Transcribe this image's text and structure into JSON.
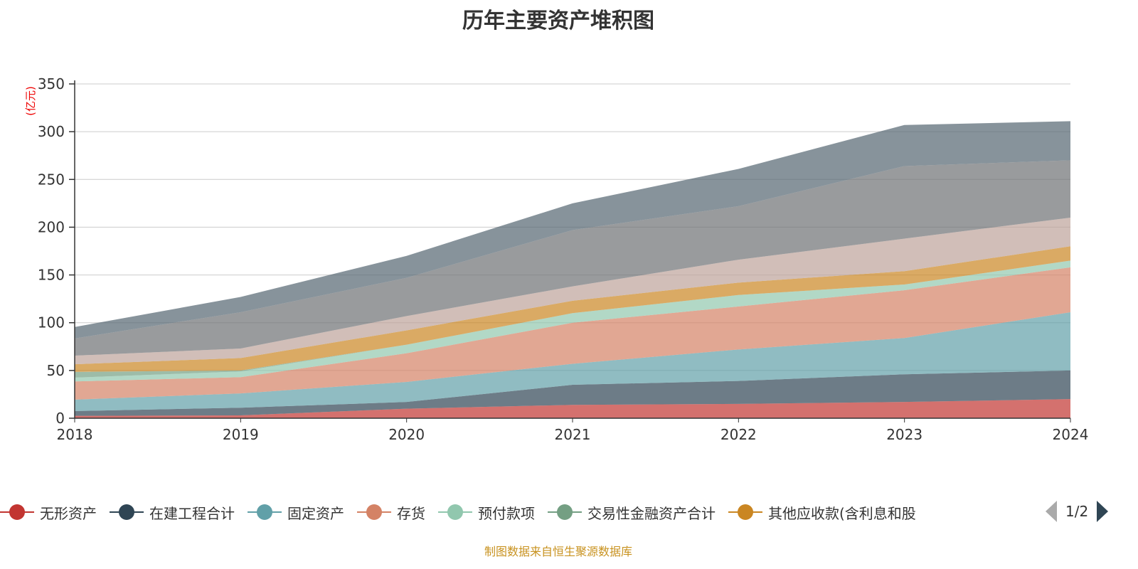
{
  "chart_data": {
    "type": "area",
    "stacked": true,
    "title": "历年主要资产堆积图",
    "unit_label": "(亿元)",
    "categories": [
      "2018",
      "2019",
      "2020",
      "2021",
      "2022",
      "2023",
      "2024"
    ],
    "ylim": [
      0,
      350
    ],
    "yticks": [
      0,
      50,
      100,
      150,
      200,
      250,
      300,
      350
    ],
    "grid": true,
    "legend_position": "bottom",
    "series": [
      {
        "name": "无形资产",
        "color": "#c23531",
        "values": [
          2.5,
          3,
          10,
          14,
          15,
          17,
          20
        ]
      },
      {
        "name": "在建工程合计",
        "color": "#2f4554",
        "values": [
          5,
          8,
          7,
          21,
          24,
          29,
          30
        ]
      },
      {
        "name": "固定资产",
        "color": "#61a0a8",
        "values": [
          12,
          15,
          21,
          22,
          33,
          38,
          61
        ]
      },
      {
        "name": "存货",
        "color": "#d48265",
        "values": [
          19,
          17,
          30,
          43,
          45,
          50,
          47
        ]
      },
      {
        "name": "预付款项",
        "color": "#91c7ae",
        "values": [
          4,
          6,
          9,
          10,
          12,
          6,
          7
        ]
      },
      {
        "name": "交易性金融资产合计",
        "color": "#749f83",
        "values": [
          6,
          1,
          0,
          0,
          0,
          0,
          0
        ]
      },
      {
        "name": "其他应收款(含利息和股",
        "color": "#ca8622",
        "values": [
          8,
          13,
          15,
          13,
          13,
          14,
          15
        ]
      },
      {
        "color": "#bda29a",
        "values": [
          9,
          10,
          15,
          15,
          24,
          34,
          30
        ]
      },
      {
        "color": "#6e7074",
        "values": [
          18,
          38,
          40,
          59,
          56,
          76,
          60
        ]
      },
      {
        "color": "#546570",
        "values": [
          12,
          16,
          23,
          28,
          39,
          43,
          41
        ]
      }
    ]
  },
  "legend": {
    "page": "1/2"
  },
  "source": "制图数据来自恒生聚源数据库"
}
